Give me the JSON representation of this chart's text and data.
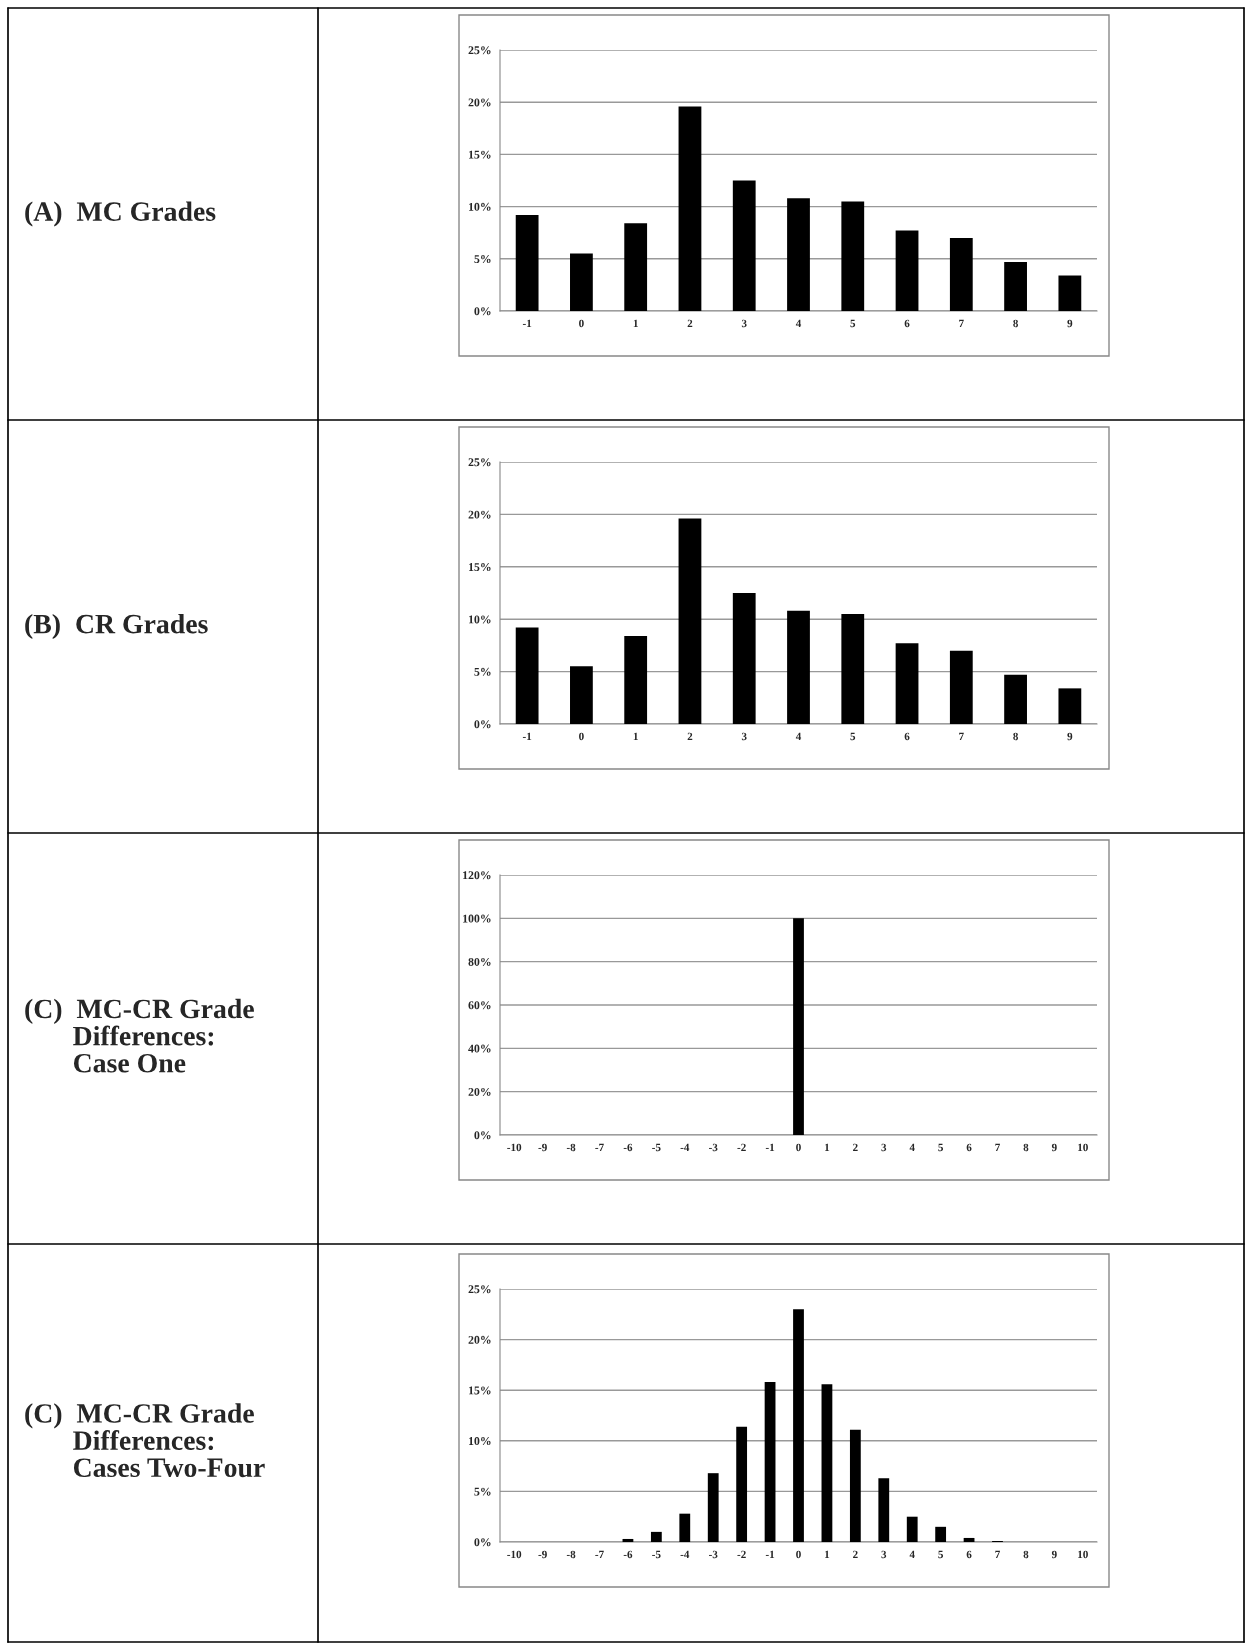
{
  "chart_data": [
    {
      "type": "bar",
      "ylabel": "(A)  MC Grades",
      "categories": [
        "-1",
        "0",
        "1",
        "2",
        "3",
        "4",
        "5",
        "6",
        "7",
        "8",
        "9"
      ],
      "values": [
        9.2,
        5.5,
        8.4,
        19.6,
        12.5,
        10.8,
        10.5,
        7.7,
        7.0,
        4.7,
        3.4
      ],
      "color": "#000000",
      "ylim": [
        0,
        25
      ],
      "yticks": [
        {
          "value": 0,
          "label": "0%"
        },
        {
          "value": 5,
          "label": "5%"
        },
        {
          "value": 10,
          "label": "10%"
        },
        {
          "value": 15,
          "label": "15%"
        },
        {
          "value": 20,
          "label": "20%"
        },
        {
          "value": 25,
          "label": "25%"
        }
      ],
      "grid": "y"
    },
    {
      "type": "bar",
      "ylabel": "(B)  CR Grades",
      "categories": [
        "-1",
        "0",
        "1",
        "2",
        "3",
        "4",
        "5",
        "6",
        "7",
        "8",
        "9"
      ],
      "values": [
        9.2,
        5.5,
        8.4,
        19.6,
        12.5,
        10.8,
        10.5,
        7.7,
        7.0,
        4.7,
        3.4
      ],
      "color": "#000000",
      "ylim": [
        0,
        25
      ],
      "yticks": [
        {
          "value": 0,
          "label": "0%"
        },
        {
          "value": 5,
          "label": "5%"
        },
        {
          "value": 10,
          "label": "10%"
        },
        {
          "value": 15,
          "label": "15%"
        },
        {
          "value": 20,
          "label": "20%"
        },
        {
          "value": 25,
          "label": "25%"
        }
      ],
      "grid": "y"
    },
    {
      "type": "bar",
      "ylabel": "(C)  MC-CR Grade\n       Differences:\n       Case One",
      "categories": [
        "-10",
        "-9",
        "-8",
        "-7",
        "-6",
        "-5",
        "-4",
        "-3",
        "-2",
        "-1",
        "0",
        "1",
        "2",
        "3",
        "4",
        "5",
        "6",
        "7",
        "8",
        "9",
        "10"
      ],
      "values": [
        0,
        0,
        0,
        0,
        0,
        0,
        0,
        0,
        0,
        0,
        100,
        0,
        0,
        0,
        0,
        0,
        0,
        0,
        0,
        0,
        0
      ],
      "color": "#000000",
      "ylim": [
        0,
        120
      ],
      "yticks": [
        {
          "value": 0,
          "label": "0%"
        },
        {
          "value": 20,
          "label": "20%"
        },
        {
          "value": 40,
          "label": "40%"
        },
        {
          "value": 60,
          "label": "60%"
        },
        {
          "value": 80,
          "label": "80%"
        },
        {
          "value": 100,
          "label": "100%"
        },
        {
          "value": 120,
          "label": "120%"
        }
      ],
      "grid": "y"
    },
    {
      "type": "bar",
      "ylabel": "(C)  MC-CR Grade\n       Differences:\n       Cases Two-Four",
      "categories": [
        "-10",
        "-9",
        "-8",
        "-7",
        "-6",
        "-5",
        "-4",
        "-3",
        "-2",
        "-1",
        "0",
        "1",
        "2",
        "3",
        "4",
        "5",
        "6",
        "7",
        "8",
        "9",
        "10"
      ],
      "values": [
        0,
        0,
        0,
        0,
        0.3,
        1.0,
        2.8,
        6.8,
        11.4,
        15.8,
        23.0,
        15.6,
        11.1,
        6.3,
        2.5,
        1.5,
        0.4,
        0.1,
        0,
        0,
        0
      ],
      "color": "#000000",
      "ylim": [
        0,
        25
      ],
      "yticks": [
        {
          "value": 0,
          "label": "0%"
        },
        {
          "value": 5,
          "label": "5%"
        },
        {
          "value": 10,
          "label": "10%"
        },
        {
          "value": 15,
          "label": "15%"
        },
        {
          "value": 20,
          "label": "20%"
        },
        {
          "value": 25,
          "label": "25%"
        }
      ],
      "grid": "y"
    }
  ]
}
